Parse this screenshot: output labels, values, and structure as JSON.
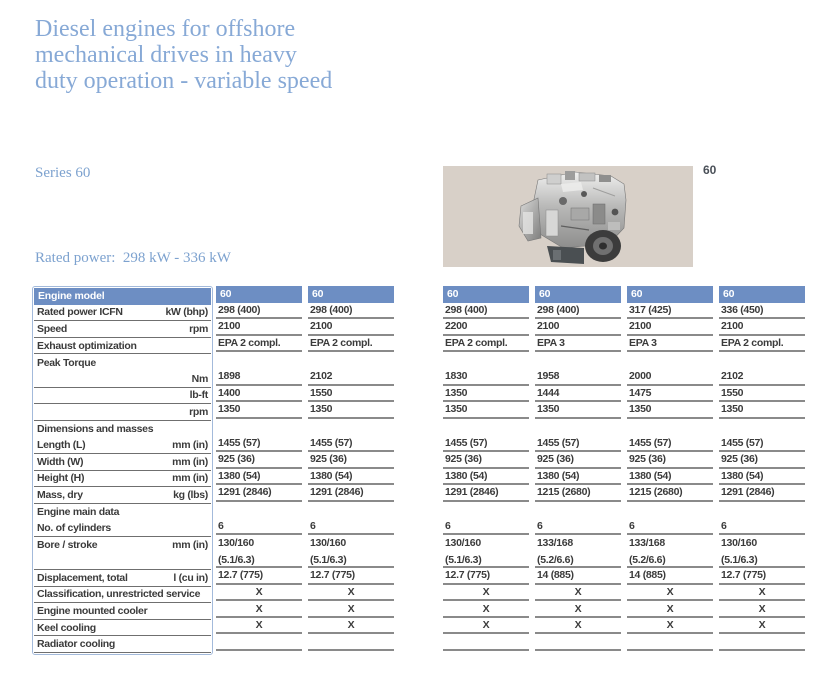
{
  "page": {
    "title_lines": [
      "Diesel engines for offshore",
      "mechanical drives in heavy",
      "duty operation - variable speed"
    ],
    "series_label": "Series 60",
    "rated_power_text": "Rated power:  298 kW - 336 kW",
    "engine_image_caption": "60",
    "colors": {
      "title_blue": "#87a9d6",
      "subtitle_blue": "#7da2cf",
      "table_header_blue": "#6d8ec3",
      "label_column_border": "#a3badb",
      "text_dark": "#3b3b3b",
      "rule_gray": "#8a8a8a",
      "image_background": "#d8d0c8"
    }
  },
  "table": {
    "header": {
      "label": "Engine model",
      "columns": [
        "60",
        "60",
        "60",
        "60",
        "60",
        "60"
      ]
    },
    "rows": [
      {
        "label": "Rated power ICFN",
        "unit": "kW (bhp)",
        "values": [
          "298 (400)",
          "298 (400)",
          "298 (400)",
          "298 (400)",
          "317 (425)",
          "336 (450)"
        ],
        "line": true
      },
      {
        "label": "Speed",
        "unit": "rpm",
        "values": [
          "2100",
          "2100",
          "2200",
          "2100",
          "2100",
          "2100"
        ],
        "line": true
      },
      {
        "label": "Exhaust optimization",
        "unit": "",
        "values": [
          "EPA 2 compl.",
          "EPA 2 compl.",
          "EPA 2 compl.",
          "EPA 3",
          "EPA 3",
          "EPA 2 compl."
        ],
        "line": true
      },
      {
        "label": "Peak Torque",
        "unit": "",
        "values": [
          "",
          "",
          "",
          "",
          "",
          ""
        ],
        "section": true,
        "line": false
      },
      {
        "label": "",
        "unit": "Nm",
        "values": [
          "1898",
          "2102",
          "1830",
          "1958",
          "2000",
          "2102"
        ],
        "line": true
      },
      {
        "label": "",
        "unit": "lb-ft",
        "values": [
          "1400",
          "1550",
          "1350",
          "1444",
          "1475",
          "1550"
        ],
        "line": true
      },
      {
        "label": "",
        "unit": "rpm",
        "values": [
          "1350",
          "1350",
          "1350",
          "1350",
          "1350",
          "1350"
        ],
        "line": true
      },
      {
        "label": "Dimensions and masses",
        "unit": "",
        "values": [
          "",
          "",
          "",
          "",
          "",
          ""
        ],
        "section": true,
        "line": false
      },
      {
        "label": "Length (L)",
        "unit": "mm (in)",
        "values": [
          "1455 (57)",
          "1455 (57)",
          "1455 (57)",
          "1455 (57)",
          "1455 (57)",
          "1455 (57)"
        ],
        "line": true
      },
      {
        "label": "Width (W)",
        "unit": "mm (in)",
        "values": [
          "925 (36)",
          "925 (36)",
          "925 (36)",
          "925 (36)",
          "925 (36)",
          "925 (36)"
        ],
        "line": true
      },
      {
        "label": "Height (H)",
        "unit": "mm (in)",
        "values": [
          "1380 (54)",
          "1380 (54)",
          "1380 (54)",
          "1380 (54)",
          "1380 (54)",
          "1380 (54)"
        ],
        "line": true
      },
      {
        "label": "Mass, dry",
        "unit": "kg (lbs)",
        "values": [
          "1291 (2846)",
          "1291 (2846)",
          "1291 (2846)",
          "1215 (2680)",
          "1215 (2680)",
          "1291 (2846)"
        ],
        "line": true
      },
      {
        "label": "Engine main data",
        "unit": "",
        "values": [
          "",
          "",
          "",
          "",
          "",
          ""
        ],
        "section": true,
        "line": false
      },
      {
        "label": "No. of cylinders",
        "unit": "",
        "values": [
          "6",
          "6",
          "6",
          "6",
          "6",
          "6"
        ],
        "line": true
      },
      {
        "label": "Bore / stroke",
        "unit": "mm (in)",
        "values": [
          [
            "130/160",
            "(5.1/6.3)"
          ],
          [
            "130/160",
            "(5.1/6.3)"
          ],
          [
            "130/160",
            "(5.1/6.3)"
          ],
          [
            "133/168",
            "(5.2/6.6)"
          ],
          [
            "133/168",
            "(5.2/6.6)"
          ],
          [
            "130/160",
            "(5.1/6.3)"
          ]
        ],
        "line": true,
        "tall": true
      },
      {
        "label": "Displacement, total",
        "unit": "l (cu in)",
        "values": [
          "12.7 (775)",
          "12.7 (775)",
          "12.7 (775)",
          "14 (885)",
          "14 (885)",
          "12.7 (775)"
        ],
        "line": true
      },
      {
        "label": "Classification, unrestricted service",
        "unit": "",
        "values": [
          "X",
          "X",
          "X",
          "X",
          "X",
          "X"
        ],
        "line": true,
        "center": true
      },
      {
        "label": "Engine mounted cooler",
        "unit": "",
        "values": [
          "X",
          "X",
          "X",
          "X",
          "X",
          "X"
        ],
        "line": true,
        "center": true
      },
      {
        "label": "Keel cooling",
        "unit": "",
        "values": [
          "X",
          "X",
          "X",
          "X",
          "X",
          "X"
        ],
        "line": true,
        "center": true
      },
      {
        "label": "Radiator cooling",
        "unit": "",
        "values": [
          "",
          "",
          "",
          "",
          "",
          ""
        ],
        "line": true
      }
    ]
  }
}
